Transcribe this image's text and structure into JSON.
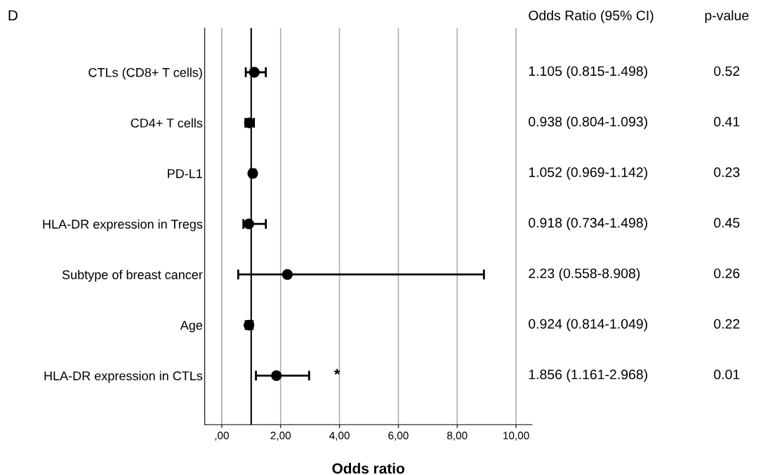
{
  "chart_data": {
    "type": "scatter",
    "orientation": "horizontal",
    "title": "D",
    "xlabel": "Odds ratio",
    "categories": [
      "CTLs (CD8+ T cells)",
      "CD4+ T cells",
      "PD-L1",
      "HLA-DR expression in Tregs",
      "Subtype of breast cancer",
      "Age",
      "HLA-DR expression in CTLs"
    ],
    "values": [
      1.105,
      0.938,
      1.052,
      0.918,
      2.23,
      0.924,
      1.856
    ],
    "errors": [
      [
        0.815,
        1.498
      ],
      [
        0.804,
        1.093
      ],
      [
        0.969,
        1.142
      ],
      [
        0.734,
        1.498
      ],
      [
        0.558,
        8.908
      ],
      [
        0.814,
        1.049
      ],
      [
        1.161,
        2.968
      ]
    ],
    "color": "#000000",
    "marker": "circle",
    "xlim": [
      -0.58,
      10.54
    ],
    "xticks": [
      {
        "value": 0,
        "label": ",00"
      },
      {
        "value": 2,
        "label": "2,00"
      },
      {
        "value": 4,
        "label": "4,00"
      },
      {
        "value": 6,
        "label": "6,00"
      },
      {
        "value": 8,
        "label": "8,00"
      },
      {
        "value": 10,
        "label": "10,00"
      }
    ],
    "grid": "x",
    "ref_lines": [
      {
        "axis": "x",
        "value": 1,
        "color": "#000000"
      }
    ],
    "annotations": [
      "*",
      "Odds Ratio (95% CI)",
      "p-value",
      "1.105 (0.815-1.498)",
      "0.52",
      "0.938 (0.804-1.093)",
      "0.41",
      "1.052 (0.969-1.142)",
      "0.23",
      "0.918 (0.734-1.498)",
      "0.45",
      "2.23 (0.558-8.908)",
      "0.26",
      "0.924 (0.814-1.049)",
      "0.22",
      "1.856 (1.161-2.968)",
      "0.01"
    ]
  }
}
